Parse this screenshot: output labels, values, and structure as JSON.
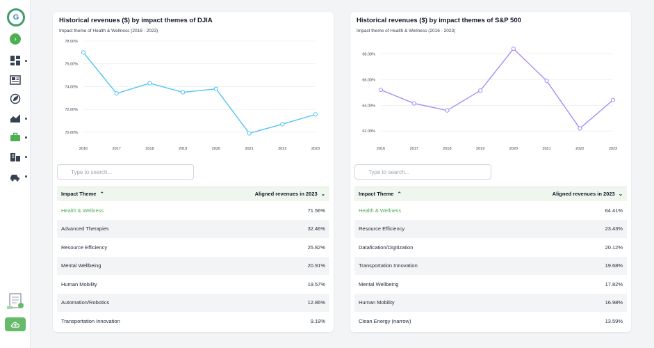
{
  "sidebar": {
    "logo_text": "G",
    "nav_icons": [
      "dashboard-icon",
      "newspaper-icon",
      "leaf-chart-icon",
      "area-chart-icon",
      "briefcase-icon",
      "buildings-icon",
      "car-factory-icon"
    ]
  },
  "panels": [
    {
      "title": "Historical revenues ($) by impact themes of DJIA",
      "subtitle": "Impact theme of Health & Wellness (2016 - 2023)",
      "search_placeholder": "Type to search...",
      "col_theme": "Impact Theme",
      "col_revenue": "Aligned revenues in 2023",
      "rows": [
        {
          "theme": "Health & Wellness",
          "value": "71.56%"
        },
        {
          "theme": "Advanced Therapies",
          "value": "32.46%"
        },
        {
          "theme": "Resource Efficiency",
          "value": "25.82%"
        },
        {
          "theme": "Mental Wellbeing",
          "value": "20.91%"
        },
        {
          "theme": "Human Mobility",
          "value": "19.57%"
        },
        {
          "theme": "Automation/Robotics",
          "value": "12.86%"
        },
        {
          "theme": "Transportation Innovation",
          "value": "9.19%"
        }
      ]
    },
    {
      "title": "Historical revenues ($) by impact themes of S&P 500",
      "subtitle": "Impact theme of Health & Wellness (2016 - 2023)",
      "search_placeholder": "Type to search...",
      "col_theme": "Impact Theme",
      "col_revenue": "Aligned revenues in 2023",
      "rows": [
        {
          "theme": "Health & Wellness",
          "value": "64.41%"
        },
        {
          "theme": "Resource Efficiency",
          "value": "23.43%"
        },
        {
          "theme": "Datafication/Digitization",
          "value": "20.12%"
        },
        {
          "theme": "Transportation Innovation",
          "value": "19.68%"
        },
        {
          "theme": "Mental Wellbeing",
          "value": "17.82%"
        },
        {
          "theme": "Human Mobility",
          "value": "16.98%"
        },
        {
          "theme": "Clean Energy (narrow)",
          "value": "13.59%"
        }
      ]
    }
  ],
  "chart_data": [
    {
      "type": "line",
      "title": "Historical revenues ($) by impact themes of DJIA",
      "subtitle": "Impact theme of Health & Wellness (2016 - 2023)",
      "categories": [
        "2016",
        "2017",
        "2018",
        "2019",
        "2020",
        "2021",
        "2022",
        "2023"
      ],
      "values": [
        77.0,
        73.4,
        74.3,
        73.5,
        73.8,
        69.9,
        70.7,
        71.56
      ],
      "yticks": [
        "70.00%",
        "72.00%",
        "74.00%",
        "76.00%",
        "78.00%"
      ],
      "ylim": [
        69.2,
        78.0
      ],
      "grid": true,
      "color": "#4fc3f7"
    },
    {
      "type": "line",
      "title": "Historical revenues ($) by impact themes of S&P 500",
      "subtitle": "Impact theme of Health & Wellness (2016 - 2023)",
      "categories": [
        "2016",
        "2017",
        "2018",
        "2019",
        "2020",
        "2021",
        "2022",
        "2023"
      ],
      "values": [
        65.2,
        64.15,
        63.6,
        65.15,
        68.4,
        65.9,
        62.2,
        64.41
      ],
      "yticks": [
        "62.00%",
        "64.00%",
        "66.00%",
        "68.00%"
      ],
      "ylim": [
        61.2,
        69.0
      ],
      "grid": true,
      "color": "#a78bfa"
    }
  ]
}
